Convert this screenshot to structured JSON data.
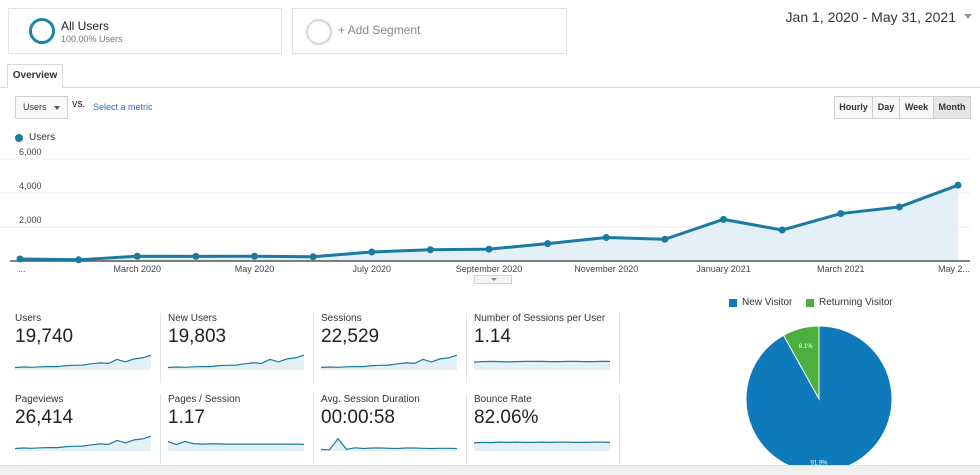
{
  "segments": {
    "all_users": {
      "title": "All Users",
      "subtitle": "100.00% Users"
    },
    "add_segment": {
      "label": "+ Add Segment"
    }
  },
  "date_range": "Jan 1, 2020 - May 31, 2021",
  "tabs": {
    "overview": "Overview"
  },
  "controls": {
    "metric": "Users",
    "vs": "VS.",
    "select_metric": "Select a metric",
    "granularity": [
      "Hourly",
      "Day",
      "Week",
      "Month"
    ],
    "granularity_active": "Month"
  },
  "chart_data": {
    "type": "area",
    "legend": "Users",
    "color": "#1a7aa0",
    "fill_color": "#e3f0f8",
    "ylim": [
      0,
      6000
    ],
    "yticks": [
      "2,000",
      "4,000",
      "6,000"
    ],
    "xtick_labels": [
      "...",
      "March 2020",
      "May 2020",
      "July 2020",
      "September 2020",
      "November 2020",
      "January 2021",
      "March 2021",
      "May 2..."
    ],
    "categories": [
      "Jan 2020",
      "Feb 2020",
      "Mar 2020",
      "Apr 2020",
      "May 2020",
      "Jun 2020",
      "Jul 2020",
      "Aug 2020",
      "Sep 2020",
      "Oct 2020",
      "Nov 2020",
      "Dec 2020",
      "Jan 2021",
      "Feb 2021",
      "Mar 2021",
      "Apr 2021",
      "May 2021"
    ],
    "values": [
      120,
      70,
      280,
      270,
      280,
      250,
      530,
      660,
      700,
      1020,
      1380,
      1280,
      2450,
      1820,
      2790,
      3180,
      4460
    ]
  },
  "metrics": [
    {
      "label": "Users",
      "value": "19,740",
      "spark": [
        1,
        1.2,
        1.1,
        1.3,
        1.4,
        1.4,
        1.8,
        1.9,
        2.0,
        2.5,
        2.9,
        2.7,
        4.3,
        3.3,
        4.5,
        4.9,
        6.0
      ]
    },
    {
      "label": "New Users",
      "value": "19,803",
      "spark": [
        1,
        1.2,
        1.1,
        1.3,
        1.4,
        1.4,
        1.8,
        1.9,
        2.0,
        2.5,
        2.9,
        2.7,
        4.3,
        3.3,
        4.5,
        4.9,
        6.0
      ]
    },
    {
      "label": "Sessions",
      "value": "22,529",
      "spark": [
        1,
        1.2,
        1.1,
        1.3,
        1.4,
        1.4,
        1.8,
        1.9,
        2.0,
        2.5,
        2.9,
        2.7,
        4.3,
        3.3,
        4.5,
        4.9,
        6.0
      ]
    },
    {
      "label": "Number of Sessions per User",
      "value": "1.14",
      "spark": [
        3.2,
        3.4,
        3.5,
        3.4,
        3.3,
        3.4,
        3.5,
        3.5,
        3.5,
        3.4,
        3.4,
        3.5,
        3.5,
        3.4,
        3.4,
        3.5,
        3.5
      ]
    },
    {
      "label": "Pageviews",
      "value": "26,414",
      "spark": [
        1,
        1.2,
        1.1,
        1.3,
        1.4,
        1.4,
        1.8,
        1.9,
        2.0,
        2.5,
        2.9,
        2.7,
        4.3,
        3.3,
        4.5,
        4.9,
        6.0
      ]
    },
    {
      "label": "Pages / Session",
      "value": "1.17",
      "spark": [
        3.8,
        2.6,
        3.9,
        3.0,
        2.8,
        2.9,
        2.9,
        2.8,
        2.8,
        2.8,
        2.8,
        2.8,
        2.8,
        2.8,
        2.8,
        2.8,
        2.7
      ]
    },
    {
      "label": "Avg. Session Duration",
      "value": "00:00:58",
      "spark": [
        0.6,
        0.5,
        5.0,
        0.7,
        1.3,
        1.0,
        1.2,
        1.2,
        1.1,
        1.0,
        1.2,
        1.2,
        1.1,
        1.0,
        1.1,
        1.1,
        1.0
      ]
    },
    {
      "label": "Bounce Rate",
      "value": "82.06%",
      "spark": [
        3.3,
        3.5,
        3.4,
        3.6,
        3.5,
        3.6,
        3.5,
        3.5,
        3.6,
        3.5,
        3.6,
        3.6,
        3.5,
        3.5,
        3.6,
        3.6,
        3.5
      ]
    }
  ],
  "visitor_pie": {
    "type": "pie",
    "legend": [
      {
        "name": "New Visitor",
        "color": "#0f7abb"
      },
      {
        "name": "Returning Visitor",
        "color": "#4caf3e"
      }
    ],
    "slices": [
      {
        "name": "New Visitor",
        "value": 91.9,
        "label": "91.9%",
        "color": "#0f7abb"
      },
      {
        "name": "Returning Visitor",
        "value": 8.1,
        "label": "8.1%",
        "color": "#4caf3e"
      }
    ]
  }
}
